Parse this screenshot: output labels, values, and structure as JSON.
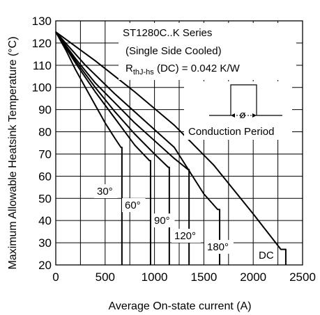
{
  "chart_data": {
    "type": "line",
    "title": "",
    "xlabel": "Average On-state current (A)",
    "ylabel": "Maximum Allowable Heatsink Temperature (°C)",
    "xlim": [
      0,
      2500
    ],
    "ylim": [
      20,
      130
    ],
    "xticks": [
      0,
      500,
      1000,
      1500,
      2000,
      2500
    ],
    "yticks": [
      20,
      30,
      40,
      50,
      60,
      70,
      80,
      90,
      100,
      110,
      120,
      130
    ],
    "grid": true,
    "annotations": {
      "series_line1": "ST1280C..K Series",
      "series_line2": "(Single Side Cooled)",
      "rth_main": "R",
      "rth_sub": "thJ-hs",
      "rth_value": " (DC) = 0.042 K/W",
      "phi": "ø",
      "conduction": "Conduction Period"
    },
    "series": [
      {
        "name": "30°",
        "x": [
          0,
          100,
          200,
          300,
          400,
          500,
          600,
          660,
          670,
          670
        ],
        "y": [
          125,
          117,
          108,
          100,
          92,
          84,
          77,
          73,
          73,
          20
        ]
      },
      {
        "name": "60°",
        "x": [
          0,
          200,
          400,
          600,
          800,
          950,
          960,
          960
        ],
        "y": [
          125,
          111,
          98,
          86,
          74,
          67,
          67,
          20
        ]
      },
      {
        "name": "90°",
        "x": [
          0,
          200,
          400,
          600,
          800,
          1000,
          1140,
          1150,
          1150
        ],
        "y": [
          125,
          112,
          100,
          89,
          79,
          70,
          64,
          64,
          20
        ]
      },
      {
        "name": "120°",
        "x": [
          0,
          200,
          400,
          600,
          800,
          1000,
          1200,
          1340,
          1350,
          1350
        ],
        "y": [
          125,
          113,
          102,
          93,
          84,
          76,
          68,
          63,
          63,
          20
        ]
      },
      {
        "name": "180°",
        "x": [
          0,
          300,
          600,
          900,
          1200,
          1500,
          1640,
          1660,
          1660
        ],
        "y": [
          125,
          110,
          97,
          85,
          73,
          52,
          45,
          45,
          20
        ]
      },
      {
        "name": "DC",
        "x": [
          0,
          400,
          800,
          1200,
          1600,
          2000,
          2280,
          2330,
          2330
        ],
        "y": [
          125,
          112,
          98,
          83,
          65,
          43,
          27,
          27,
          20
        ]
      }
    ],
    "curve_labels": [
      "30",
      "60",
      "90",
      "120",
      "180",
      "DC"
    ],
    "degree_mark": "°"
  }
}
